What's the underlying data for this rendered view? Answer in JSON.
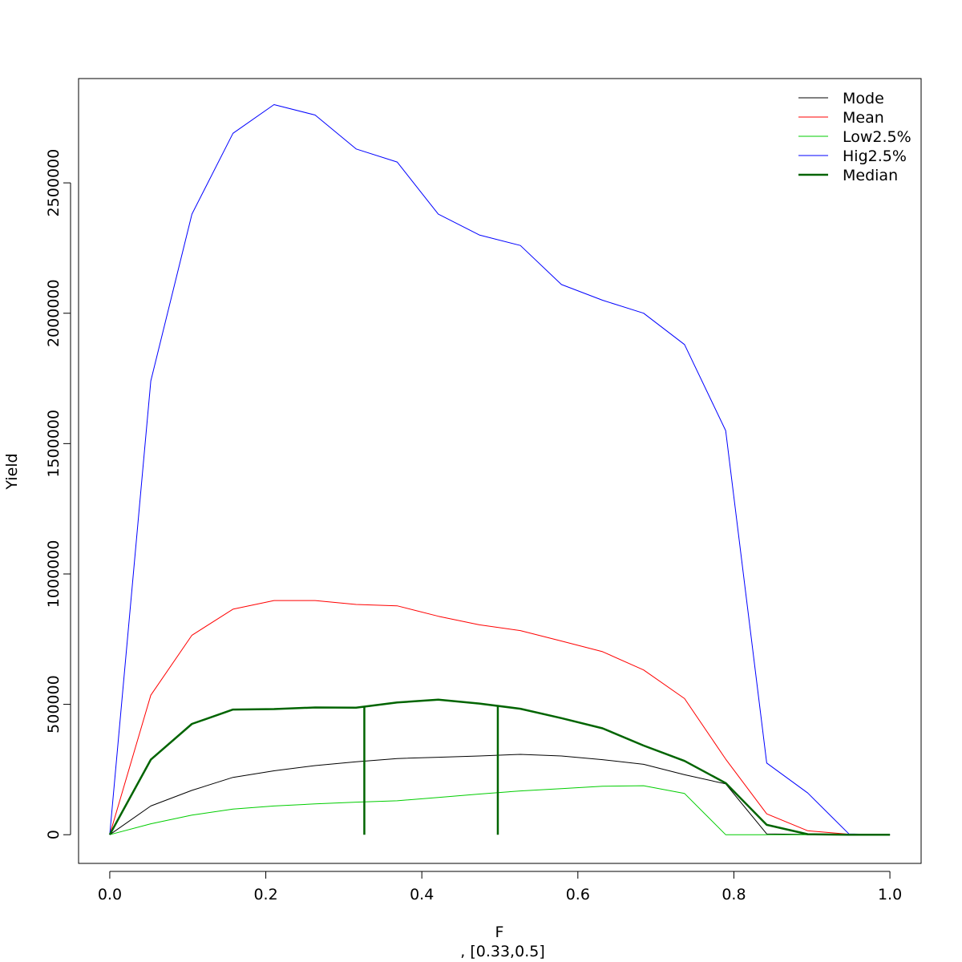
{
  "chart_data": {
    "type": "line",
    "xlabel": "F",
    "ylabel": "Yield",
    "subtitle": ", [0.33,0.5]",
    "xlim": [
      -0.04,
      1.04
    ],
    "ylim": [
      -110000,
      2900000
    ],
    "x_ticks": [
      0.0,
      0.2,
      0.4,
      0.6,
      0.8,
      1.0
    ],
    "x_tick_labels": [
      "0.0",
      "0.2",
      "0.4",
      "0.6",
      "0.8",
      "1.0"
    ],
    "y_ticks": [
      0,
      500000,
      1000000,
      1500000,
      2000000,
      2500000
    ],
    "y_tick_labels": [
      "0",
      "500000",
      "1000000",
      "1500000",
      "2000000",
      "2500000"
    ],
    "legend_position": "top-right",
    "x": [
      0.0,
      0.0526,
      0.1053,
      0.1579,
      0.2105,
      0.2632,
      0.3158,
      0.3684,
      0.4211,
      0.4737,
      0.5263,
      0.5789,
      0.6316,
      0.6842,
      0.7368,
      0.7895,
      0.8421,
      0.8947,
      0.9474,
      1.0
    ],
    "series": [
      {
        "name": "Mode",
        "color": "#000000",
        "width": 1,
        "values": [
          0,
          110000,
          170000,
          220000,
          245000,
          265000,
          280000,
          292000,
          297000,
          302000,
          308000,
          302000,
          288000,
          270000,
          230000,
          195000,
          3000,
          1000,
          0,
          0
        ]
      },
      {
        "name": "Mean",
        "color": "#ff0000",
        "width": 1,
        "values": [
          0,
          535000,
          765000,
          865000,
          898000,
          898000,
          883000,
          878000,
          838000,
          805000,
          783000,
          743000,
          702000,
          632000,
          522000,
          290000,
          80000,
          15000,
          2000,
          0
        ]
      },
      {
        "name": "Low2.5%",
        "color": "#00cd00",
        "width": 1,
        "values": [
          0,
          42000,
          75000,
          98000,
          110000,
          118000,
          125000,
          130000,
          143000,
          156000,
          168000,
          177000,
          186000,
          188000,
          158000,
          0,
          0,
          0,
          0,
          0
        ]
      },
      {
        "name": "Hig2.5%",
        "color": "#0000ff",
        "width": 1,
        "values": [
          0,
          1740000,
          2380000,
          2690000,
          2800000,
          2760000,
          2630000,
          2580000,
          2380000,
          2300000,
          2260000,
          2110000,
          2050000,
          2000000,
          1880000,
          1550000,
          275000,
          160000,
          3000,
          0
        ]
      },
      {
        "name": "Median",
        "color": "#006400",
        "width": 2.5,
        "values": [
          0,
          288000,
          425000,
          480000,
          482000,
          488000,
          487000,
          507000,
          518000,
          503000,
          483000,
          447000,
          408000,
          342000,
          283000,
          198000,
          38000,
          2000,
          0,
          0
        ]
      }
    ],
    "vertical_markers": [
      {
        "x": 0.3263,
        "y_top": 490000,
        "color": "#006400"
      },
      {
        "x": 0.4974,
        "y_top": 492000,
        "color": "#006400"
      }
    ]
  }
}
